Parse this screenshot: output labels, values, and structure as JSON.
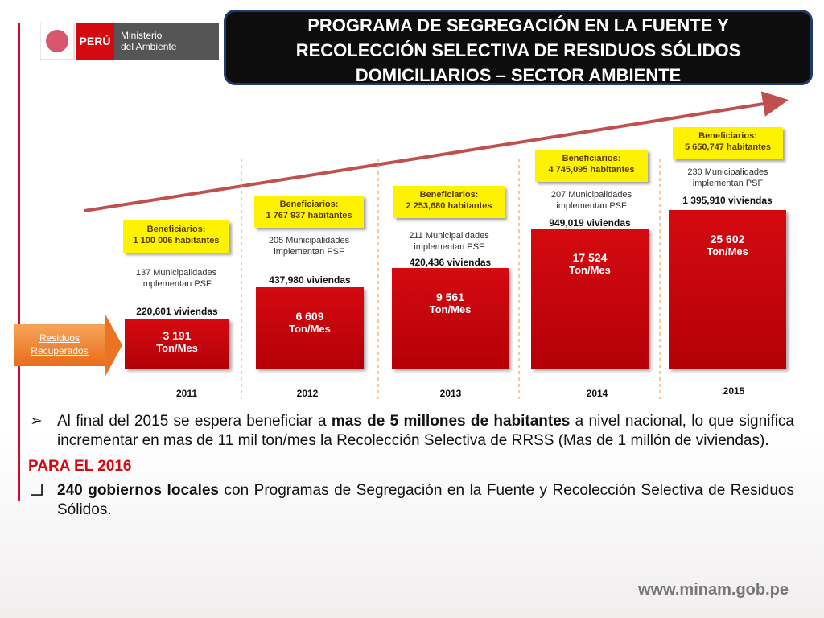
{
  "header": {
    "title": [
      "PROGRAMA DE SEGREGACIÓN EN LA FUENTE Y",
      "RECOLECCIÓN SELECTIVA DE RESIDUOS SÓLIDOS",
      "DOMICILIARIOS – SECTOR AMBIENTE"
    ],
    "country": "PERÚ",
    "ministry": [
      "Ministerio",
      "del Ambiente"
    ]
  },
  "timeline": {
    "side_label": [
      "Residuos",
      "Recuperados"
    ],
    "years": [
      {
        "year": "2011",
        "beneficiaries_label": "Beneficiarios:",
        "beneficiaries": "1 100 006 habitantes",
        "municipalities": "137  Municipalidades implementan PSF",
        "homes": "220,601 viviendas",
        "tons": "3 191",
        "unit": "Ton/Mes"
      },
      {
        "year": "2012",
        "beneficiaries_label": "Beneficiarios:",
        "beneficiaries": "1 767 937 habitantes",
        "municipalities": "205 Municipalidades implementan PSF",
        "homes": "437,980 viviendas",
        "tons": "6 609",
        "unit": "Ton/Mes"
      },
      {
        "year": "2013",
        "beneficiaries_label": "Beneficiarios:",
        "beneficiaries": "2 253,680 habitantes",
        "municipalities": "211 Municipalidades implementan PSF",
        "homes": "420,436 viviendas",
        "tons": "9 561",
        "unit": "Ton/Mes"
      },
      {
        "year": "2014",
        "beneficiaries_label": "Beneficiarios:",
        "beneficiaries": "4 745,095 habitantes",
        "municipalities": "207 Municipalidades implementan PSF",
        "homes": "949,019 viviendas",
        "tons": "17 524",
        "unit": "Ton/Mes"
      },
      {
        "year": "2015",
        "beneficiaries_label": "Beneficiarios:",
        "beneficiaries": "5 650,747 habitantes",
        "municipalities": "230 Municipalidades implementan PSF",
        "homes": "1 395,910 viviendas",
        "tons": "25 602",
        "unit": "Ton/Mes"
      }
    ]
  },
  "body": {
    "paragraph": [
      "Al final del 2015 se espera beneficiar a ",
      "mas de 5 millones de habitantes",
      " a nivel nacional, lo que significa incrementar en mas de 11 mil ton/mes la Recolección Selectiva de RRSS (Mas de 1 millón de viviendas)."
    ],
    "heading": "PARA EL 2016",
    "item": [
      "240 gobiernos locales",
      " con Programas de Segregación en la Fuente y Recolección Selectiva de Residuos Sólidos."
    ]
  },
  "footer": "www.minam.gob.pe"
}
